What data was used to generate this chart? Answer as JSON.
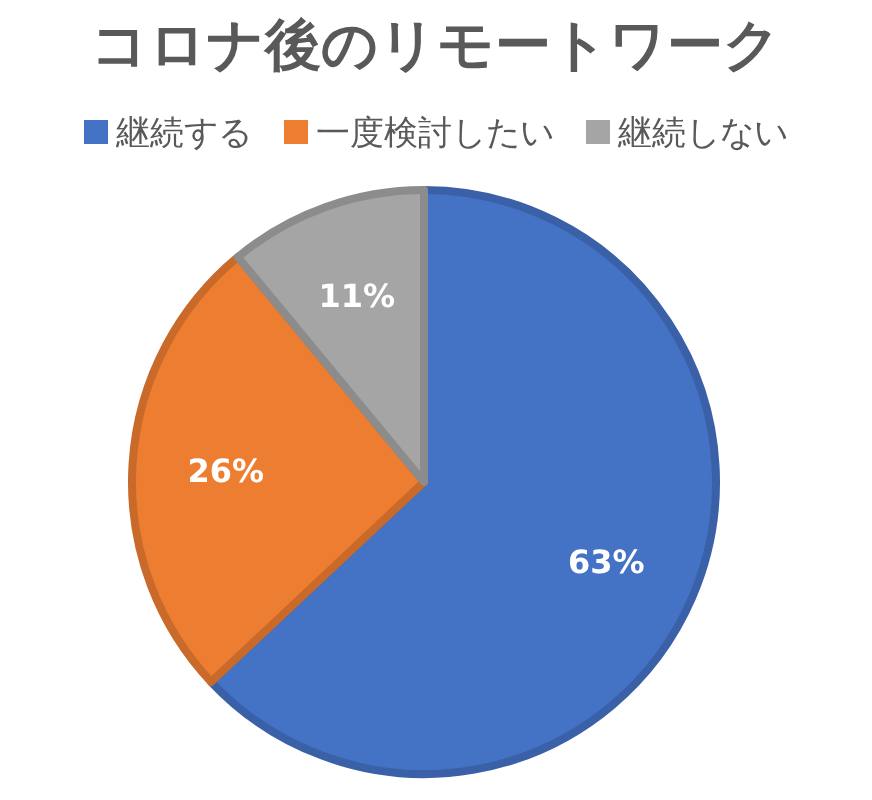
{
  "chart_data": {
    "type": "pie",
    "title": "コロナ後のリモートワーク",
    "categories": [
      "継続する",
      "一度検討したい",
      "継続しない"
    ],
    "values": [
      63,
      26,
      11
    ],
    "colors": [
      "#4472c4",
      "#ed7d31",
      "#a5a5a5"
    ],
    "value_labels": [
      "63%",
      "26%",
      "11%"
    ],
    "legend": "top"
  }
}
